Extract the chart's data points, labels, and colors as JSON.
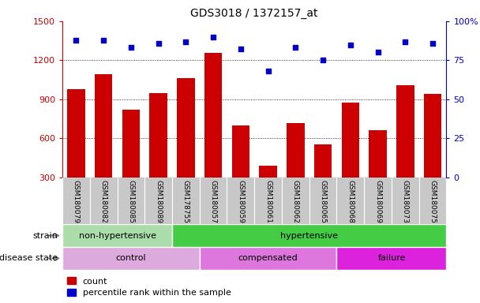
{
  "title": "GDS3018 / 1372157_at",
  "samples": [
    "GSM180079",
    "GSM180082",
    "GSM180085",
    "GSM180089",
    "GSM178755",
    "GSM180057",
    "GSM180059",
    "GSM180061",
    "GSM180062",
    "GSM180065",
    "GSM180068",
    "GSM180069",
    "GSM180073",
    "GSM180075"
  ],
  "counts": [
    980,
    1095,
    820,
    950,
    1060,
    1255,
    700,
    390,
    715,
    555,
    875,
    660,
    1010,
    940
  ],
  "percentile": [
    88,
    88,
    83,
    86,
    87,
    90,
    82,
    68,
    83,
    75,
    85,
    80,
    87,
    86
  ],
  "ylim_left": [
    300,
    1500
  ],
  "ylim_right": [
    0,
    100
  ],
  "yticks_left": [
    300,
    600,
    900,
    1200,
    1500
  ],
  "yticks_right": [
    0,
    25,
    50,
    75,
    100
  ],
  "bar_color": "#cc0000",
  "dot_color": "#0000cc",
  "strain_groups": [
    {
      "label": "non-hypertensive",
      "start": 0,
      "end": 4,
      "color": "#aaddaa"
    },
    {
      "label": "hypertensive",
      "start": 4,
      "end": 14,
      "color": "#44cc44"
    }
  ],
  "disease_groups": [
    {
      "label": "control",
      "start": 0,
      "end": 5,
      "color": "#ddaadd"
    },
    {
      "label": "compensated",
      "start": 5,
      "end": 10,
      "color": "#dd77dd"
    },
    {
      "label": "failure",
      "start": 10,
      "end": 14,
      "color": "#dd22dd"
    }
  ],
  "strain_label": "strain",
  "disease_label": "disease state",
  "legend_count": "count",
  "legend_percentile": "percentile rank within the sample",
  "tick_area_color": "#c8c8c8",
  "bar_bottom": 300
}
